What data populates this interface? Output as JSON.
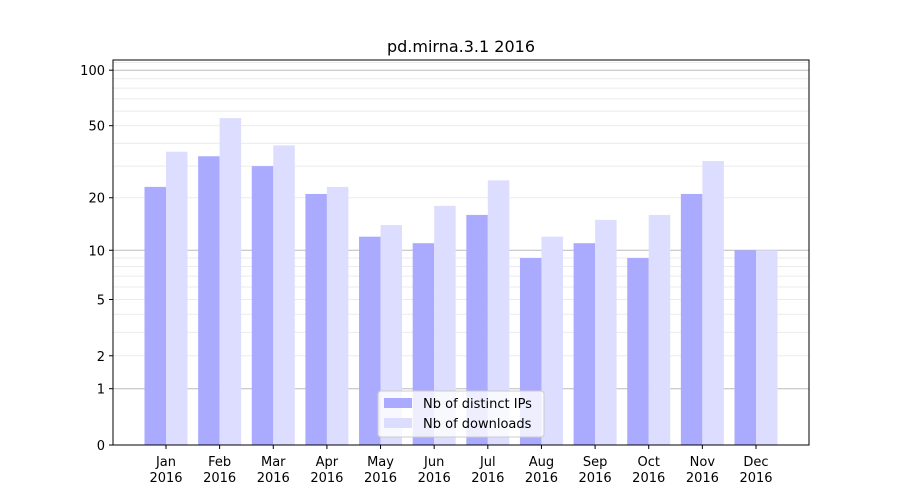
{
  "chart_data": {
    "type": "bar",
    "title": "pd.mirna.3.1 2016",
    "xlabel": "",
    "ylabel": "",
    "yscale": "log(1+x)",
    "ylim": [
      0,
      120
    ],
    "yticks": [
      0,
      1,
      2,
      5,
      10,
      20,
      50,
      100
    ],
    "grid": true,
    "legend_position": "bottom-center",
    "categories": [
      "Jan\n2016",
      "Feb\n2016",
      "Mar\n2016",
      "Apr\n2016",
      "May\n2016",
      "Jun\n2016",
      "Jul\n2016",
      "Aug\n2016",
      "Sep\n2016",
      "Oct\n2016",
      "Nov\n2016",
      "Dec\n2016"
    ],
    "series": [
      {
        "name": "Nb of distinct IPs",
        "color": "#aaaaff",
        "values": [
          23,
          34,
          30,
          21,
          12,
          11,
          16,
          9,
          11,
          9,
          21,
          10
        ]
      },
      {
        "name": "Nb of downloads",
        "color": "#ddddff",
        "values": [
          36,
          55,
          39,
          23,
          14,
          18,
          25,
          12,
          15,
          16,
          32,
          10
        ]
      }
    ]
  }
}
